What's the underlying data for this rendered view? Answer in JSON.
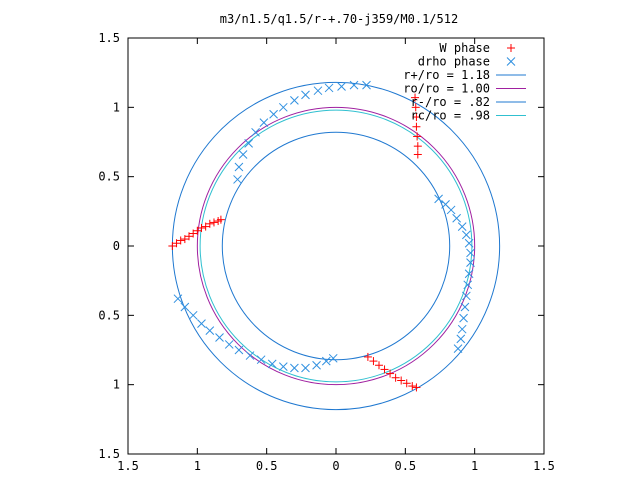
{
  "chart_data": {
    "type": "scatter",
    "title": "m3/n1.5/q1.5/r-+.70-j359/M0.1/512",
    "xlabel": "",
    "ylabel": "",
    "xlim": [
      -1.5,
      1.5
    ],
    "ylim": [
      -1.5,
      1.5
    ],
    "grid": false,
    "legend_position": "top-right",
    "x_tick_labels": [
      "1.5",
      "1",
      "0.5",
      "0",
      "0.5",
      "1",
      "1.5"
    ],
    "y_tick_labels": [
      "1.5",
      "1",
      "0.5",
      "0",
      "0.5",
      "1",
      "1.5"
    ],
    "tick_values": [
      -1.5,
      -1,
      -0.5,
      0,
      0.5,
      1,
      1.5
    ],
    "circles": [
      {
        "name": "r+/ro = 1.18",
        "radius": 1.18,
        "color": "#1f78d0"
      },
      {
        "name": "ro/ro = 1.00",
        "radius": 1.0,
        "color": "#a020a0"
      },
      {
        "name": "r-/ro = .82",
        "radius": 0.82,
        "color": "#1f78d0"
      },
      {
        "name": "rc/ro = .98",
        "radius": 0.98,
        "color": "#30c0d0"
      }
    ],
    "series": [
      {
        "name": "W phase",
        "marker": "plus",
        "color": "#ff0000",
        "points": [
          [
            -1.18,
            0.0
          ],
          [
            -1.15,
            0.02
          ],
          [
            -1.12,
            0.04
          ],
          [
            -1.09,
            0.05
          ],
          [
            -1.06,
            0.07
          ],
          [
            -1.03,
            0.09
          ],
          [
            -1.0,
            0.11
          ],
          [
            -0.97,
            0.13
          ],
          [
            -0.94,
            0.14
          ],
          [
            -0.91,
            0.16
          ],
          [
            -0.88,
            0.17
          ],
          [
            -0.85,
            0.18
          ],
          [
            -0.83,
            0.19
          ],
          [
            0.57,
            1.07
          ],
          [
            0.575,
            1.0
          ],
          [
            0.58,
            0.93
          ],
          [
            0.58,
            0.86
          ],
          [
            0.585,
            0.79
          ],
          [
            0.59,
            0.72
          ],
          [
            0.59,
            0.66
          ],
          [
            0.23,
            -0.8
          ],
          [
            0.27,
            -0.83
          ],
          [
            0.31,
            -0.86
          ],
          [
            0.35,
            -0.89
          ],
          [
            0.39,
            -0.92
          ],
          [
            0.43,
            -0.95
          ],
          [
            0.47,
            -0.97
          ],
          [
            0.51,
            -0.99
          ],
          [
            0.55,
            -1.01
          ],
          [
            0.58,
            -1.02
          ]
        ]
      },
      {
        "name": "drho phase",
        "marker": "cross",
        "color": "#3090e0",
        "points": [
          [
            -0.71,
            0.48
          ],
          [
            -0.7,
            0.57
          ],
          [
            -0.67,
            0.66
          ],
          [
            -0.63,
            0.74
          ],
          [
            -0.58,
            0.82
          ],
          [
            -0.52,
            0.89
          ],
          [
            -0.45,
            0.95
          ],
          [
            -0.38,
            1.0
          ],
          [
            -0.3,
            1.05
          ],
          [
            -0.22,
            1.09
          ],
          [
            -0.13,
            1.12
          ],
          [
            -0.05,
            1.14
          ],
          [
            0.04,
            1.15
          ],
          [
            0.13,
            1.16
          ],
          [
            0.22,
            1.16
          ],
          [
            0.74,
            0.34
          ],
          [
            0.79,
            0.3
          ],
          [
            0.83,
            0.26
          ],
          [
            0.87,
            0.2
          ],
          [
            0.91,
            0.14
          ],
          [
            0.94,
            0.08
          ],
          [
            0.96,
            0.02
          ],
          [
            0.97,
            -0.05
          ],
          [
            0.97,
            -0.12
          ],
          [
            0.96,
            -0.2
          ],
          [
            0.95,
            -0.28
          ],
          [
            0.94,
            -0.36
          ],
          [
            0.93,
            -0.44
          ],
          [
            0.92,
            -0.52
          ],
          [
            0.91,
            -0.6
          ],
          [
            0.9,
            -0.67
          ],
          [
            0.88,
            -0.74
          ],
          [
            -1.14,
            -0.38
          ],
          [
            -1.09,
            -0.44
          ],
          [
            -1.03,
            -0.5
          ],
          [
            -0.97,
            -0.56
          ],
          [
            -0.91,
            -0.61
          ],
          [
            -0.84,
            -0.66
          ],
          [
            -0.77,
            -0.71
          ],
          [
            -0.7,
            -0.75
          ],
          [
            -0.62,
            -0.79
          ],
          [
            -0.54,
            -0.82
          ],
          [
            -0.46,
            -0.85
          ],
          [
            -0.38,
            -0.87
          ],
          [
            -0.3,
            -0.88
          ],
          [
            -0.22,
            -0.88
          ],
          [
            -0.14,
            -0.86
          ],
          [
            -0.07,
            -0.83
          ],
          [
            -0.02,
            -0.81
          ]
        ]
      }
    ]
  }
}
